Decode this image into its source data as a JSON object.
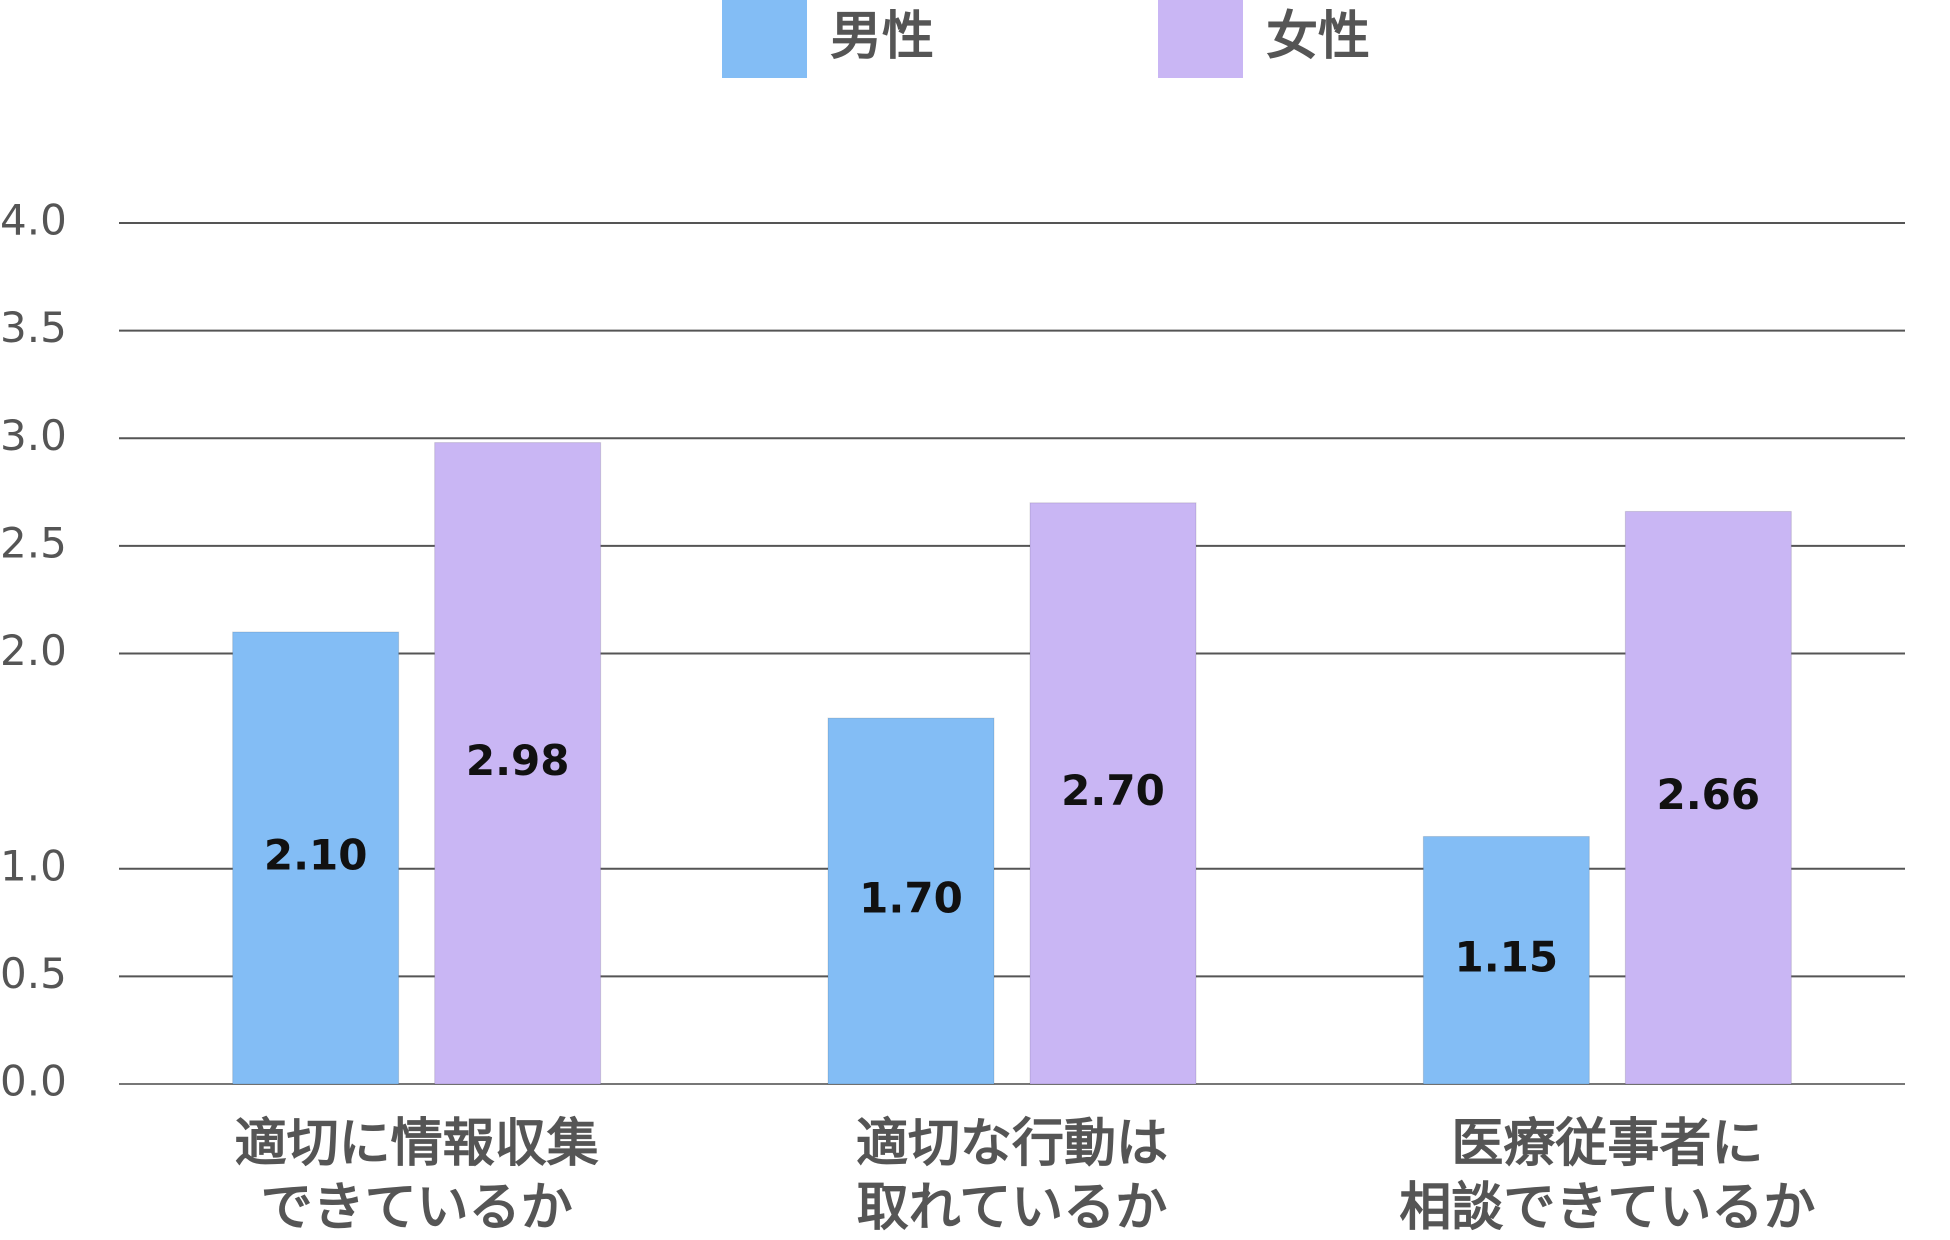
{
  "chart_data": {
    "type": "bar",
    "categories": [
      "適切に情報収集\nできているか",
      "適切な行動は\n取れているか",
      "医療従事者に\n相談できているか"
    ],
    "series": [
      {
        "name": "男性",
        "color": "#83bdf5",
        "values": [
          2.1,
          1.7,
          1.15
        ],
        "value_labels": [
          "2.10",
          "1.70",
          "1.15"
        ]
      },
      {
        "name": "女性",
        "color": "#c9b6f4",
        "values": [
          2.98,
          2.7,
          2.66
        ],
        "value_labels": [
          "2.98",
          "2.70",
          "2.66"
        ]
      }
    ],
    "ylim": [
      0,
      4
    ],
    "yticks": [
      {
        "value": 0,
        "label": "0.0"
      },
      {
        "value": 0.5,
        "label": "0.5"
      },
      {
        "value": 1,
        "label": "1.0"
      },
      {
        "value": 2,
        "label": "2.0"
      },
      {
        "value": 2.5,
        "label": "2.5"
      },
      {
        "value": 3,
        "label": "3.0"
      },
      {
        "value": 3.5,
        "label": "3.5"
      },
      {
        "value": 4,
        "label": "4.0"
      }
    ],
    "grid": true,
    "legend": "top"
  }
}
